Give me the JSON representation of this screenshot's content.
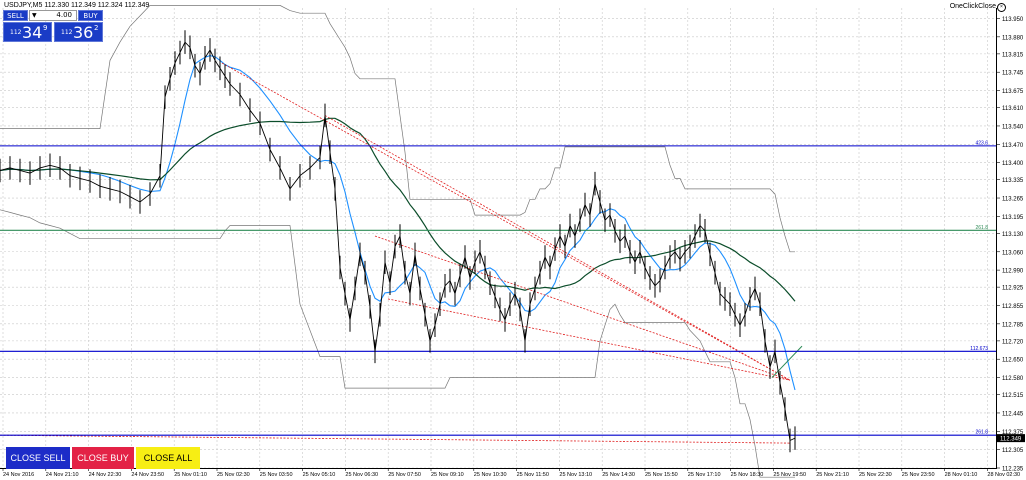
{
  "header": {
    "symbol_label": "USDJPY,M5  112.330 112.349 112.324 112.349",
    "oneclick_label": "OneClickClose",
    "oneclick_icon": "close-circle-icon"
  },
  "trade_panel": {
    "sell_label": "SELL",
    "buy_label": "BUY",
    "lot_value": "4.00",
    "sell_price": {
      "big": "112",
      "large": "34",
      "sup": "9"
    },
    "buy_price": {
      "big": "112",
      "large": "36",
      "sup": "2"
    },
    "color": "#1a3cc6"
  },
  "buttons": {
    "close_sell": "CLOSE SELL",
    "close_buy": "CLOSE BUY",
    "close_all": "CLOSE ALL"
  },
  "chart_data": {
    "type": "line",
    "ylim": [
      112.235,
      113.99
    ],
    "y_ticks": [
      "113.950",
      "113.880",
      "113.815",
      "113.745",
      "113.675",
      "113.610",
      "113.540",
      "113.470",
      "113.400",
      "113.335",
      "113.265",
      "113.195",
      "113.130",
      "113.060",
      "112.990",
      "112.925",
      "112.855",
      "112.785",
      "112.720",
      "112.650",
      "112.580",
      "112.515",
      "112.445",
      "112.375",
      "112.305",
      "112.235"
    ],
    "x_ticks": [
      "24 Nov 2016",
      "24 Nov 21:10",
      "24 Nov 22:30",
      "24 Nov 23:50",
      "25 Nov 01:10",
      "25 Nov 02:30",
      "25 Nov 03:50",
      "25 Nov 05:10",
      "25 Nov 06:30",
      "25 Nov 07:50",
      "25 Nov 09:10",
      "25 Nov 10:30",
      "25 Nov 11:50",
      "25 Nov 13:10",
      "25 Nov 14:30",
      "25 Nov 15:50",
      "25 Nov 17:10",
      "25 Nov 18:30",
      "25 Nov 19:50",
      "25 Nov 21:10",
      "25 Nov 22:30",
      "25 Nov 23:50",
      "28 Nov 01:10",
      "28 Nov 02:30"
    ],
    "hlines": [
      {
        "y": 113.464,
        "color": "#0000cc",
        "label": "423.6"
      },
      {
        "y": 113.142,
        "color": "#2e8b57",
        "label": "261.8"
      },
      {
        "y": 112.68,
        "color": "#0000cc",
        "label": "112.673"
      },
      {
        "y": 112.36,
        "color": "#0000cc",
        "label": "261.8"
      }
    ],
    "current_price": "112.349",
    "price_x": [
      0,
      10,
      20,
      30,
      40,
      50,
      60,
      70,
      80,
      90,
      100,
      110,
      120,
      130,
      140,
      150,
      160,
      165,
      170,
      175,
      180,
      185,
      190,
      195,
      200,
      205,
      210,
      215,
      220,
      225,
      230,
      240,
      250,
      260,
      270,
      280,
      290,
      300,
      310,
      320,
      325,
      330,
      335,
      340,
      345,
      350,
      355,
      360,
      365,
      370,
      375,
      380,
      385,
      390,
      395,
      400,
      405,
      410,
      415,
      420,
      425,
      430,
      435,
      440,
      445,
      450,
      455,
      460,
      465,
      470,
      475,
      480,
      485,
      490,
      495,
      500,
      505,
      510,
      515,
      520,
      525,
      530,
      535,
      540,
      545,
      550,
      555,
      560,
      565,
      570,
      575,
      580,
      585,
      590,
      595,
      600,
      605,
      610,
      615,
      620,
      625,
      630,
      635,
      640,
      645,
      650,
      655,
      660,
      665,
      670,
      675,
      680,
      685,
      690,
      695,
      700,
      705,
      710,
      715,
      720,
      725,
      730,
      735,
      740,
      745,
      750,
      755,
      760,
      765,
      770,
      775,
      780,
      785,
      790,
      795
    ],
    "price_y": [
      113.37,
      113.38,
      113.37,
      113.36,
      113.38,
      113.39,
      113.38,
      113.35,
      113.34,
      113.33,
      113.31,
      113.3,
      113.29,
      113.27,
      113.25,
      113.28,
      113.35,
      113.65,
      113.72,
      113.78,
      113.82,
      113.86,
      113.84,
      113.77,
      113.74,
      113.8,
      113.83,
      113.79,
      113.76,
      113.73,
      113.7,
      113.66,
      113.6,
      113.55,
      113.45,
      113.38,
      113.3,
      113.35,
      113.38,
      113.42,
      113.58,
      113.44,
      113.3,
      113.0,
      112.9,
      112.8,
      112.92,
      113.05,
      112.98,
      112.85,
      112.68,
      112.82,
      113.02,
      112.94,
      113.08,
      113.12,
      112.98,
      112.9,
      113.05,
      112.92,
      112.82,
      112.72,
      112.78,
      112.86,
      112.93,
      112.95,
      112.9,
      112.97,
      113.04,
      112.96,
      113.02,
      113.06,
      113.0,
      112.94,
      112.89,
      112.84,
      112.8,
      112.86,
      112.9,
      112.84,
      112.72,
      112.86,
      112.92,
      112.98,
      113.04,
      113.0,
      113.07,
      113.12,
      113.08,
      113.16,
      113.12,
      113.18,
      113.24,
      113.2,
      113.32,
      113.25,
      113.18,
      113.2,
      113.14,
      113.1,
      113.12,
      113.06,
      113.02,
      113.06,
      113.0,
      112.96,
      112.93,
      112.95,
      113.0,
      113.04,
      113.06,
      113.03,
      113.06,
      113.08,
      113.12,
      113.16,
      113.14,
      113.05,
      112.98,
      112.9,
      112.88,
      112.86,
      112.82,
      112.78,
      112.82,
      112.88,
      112.92,
      112.86,
      112.72,
      112.62,
      112.68,
      112.56,
      112.46,
      112.34,
      112.349
    ]
  }
}
